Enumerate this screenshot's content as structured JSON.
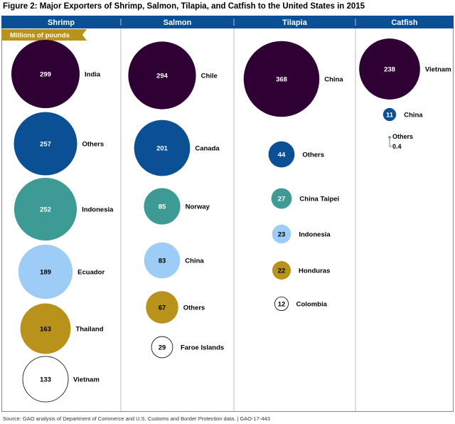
{
  "title": "Figure 2: Major Exporters of Shrimp, Salmon, Tilapia, and Catfish to the United States in 2015",
  "source": "Source: GAO analysis of Department of Commerce and U.S. Customs and Border Protection data.  |  GAO-17-443",
  "colors": {
    "header": "#0b4f94",
    "banner": "#b8921a",
    "rank1": "#2e0033",
    "rank2": "#0b4f94",
    "rank3": "#3e9a94",
    "rank4": "#9dcdf7",
    "rank5": "#b8921a",
    "rank6": "#ffffff"
  },
  "chart_data": {
    "type": "bubble",
    "unit_label": "Millions of pounds",
    "panels": [
      {
        "name": "Shrimp",
        "categories": [
          "India",
          "Others",
          "Indonesia",
          "Ecuador",
          "Thailand",
          "Vietnam"
        ],
        "values": [
          299,
          257,
          252,
          189,
          163,
          133
        ]
      },
      {
        "name": "Salmon",
        "categories": [
          "Chile",
          "Canada",
          "Norway",
          "China",
          "Others",
          "Faroe Islands"
        ],
        "values": [
          294,
          201,
          85,
          83,
          67,
          29
        ]
      },
      {
        "name": "Tilapia",
        "categories": [
          "China",
          "Others",
          "China Taipei",
          "Indonesia",
          "Honduras",
          "Colombia"
        ],
        "values": [
          368,
          44,
          27,
          23,
          22,
          12
        ]
      },
      {
        "name": "Catfish",
        "categories": [
          "Vietnam",
          "China",
          "Others"
        ],
        "values": [
          238,
          11,
          0.4
        ]
      }
    ]
  }
}
